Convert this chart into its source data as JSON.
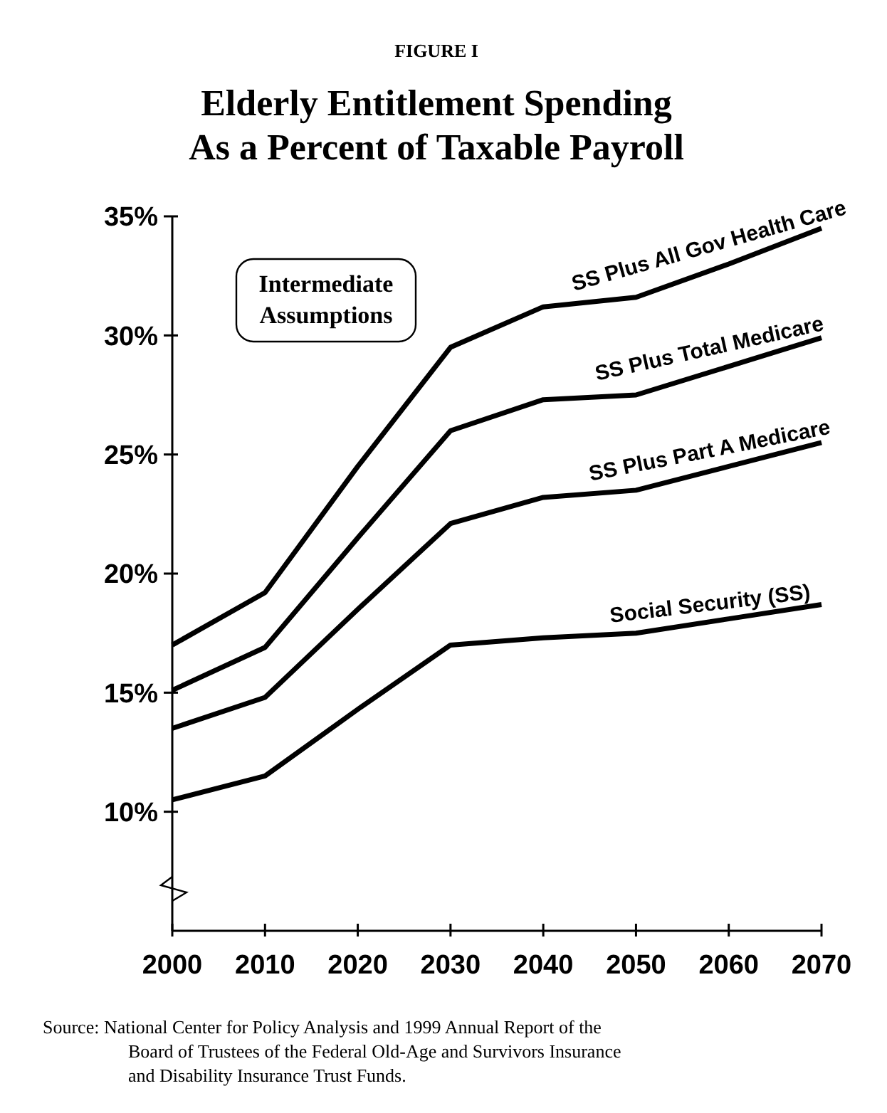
{
  "chart_data": {
    "type": "line",
    "subtitle": "FIGURE I",
    "title": "Elderly Entitlement Spending\nAs a Percent of Taxable Payroll",
    "x": [
      2000,
      2010,
      2020,
      2030,
      2040,
      2050,
      2060,
      2070
    ],
    "series": [
      {
        "name": "SS Plus All Gov Health Care",
        "color": "#000000",
        "values": [
          17.0,
          19.2,
          24.5,
          29.5,
          31.2,
          31.6,
          33.0,
          34.5
        ]
      },
      {
        "name": "SS Plus Total Medicare",
        "color": "#000000",
        "values": [
          15.1,
          16.9,
          21.5,
          26.0,
          27.3,
          27.5,
          28.7,
          29.9
        ]
      },
      {
        "name": "SS Plus Part A Medicare",
        "color": "#000000",
        "values": [
          13.5,
          14.8,
          18.5,
          22.1,
          23.2,
          23.5,
          24.5,
          25.5
        ]
      },
      {
        "name": "Social Security (SS)",
        "color": "#000000",
        "values": [
          10.5,
          11.5,
          14.3,
          17.0,
          17.3,
          17.5,
          18.1,
          18.7
        ]
      }
    ],
    "xlim": [
      2000,
      2070
    ],
    "xticks": [
      2000,
      2010,
      2020,
      2030,
      2040,
      2050,
      2060,
      2070
    ],
    "ylim": [
      5,
      35
    ],
    "yticks": [
      {
        "value": 10,
        "label": "10%"
      },
      {
        "value": 15,
        "label": "15%"
      },
      {
        "value": 20,
        "label": "20%"
      },
      {
        "value": 25,
        "label": "25%"
      },
      {
        "value": 30,
        "label": "30%"
      },
      {
        "value": 35,
        "label": "35%"
      }
    ],
    "grid": false,
    "marker": "none",
    "line_style": "solid",
    "annotations": [
      "Intermediate\nAssumptions",
      "Source: National Center for Policy Analysis and 1999 Annual Report of the\nBoard of Trustees of the Federal Old-Age and Survivors Insurance\nand Disability Insurance Trust Funds."
    ]
  }
}
